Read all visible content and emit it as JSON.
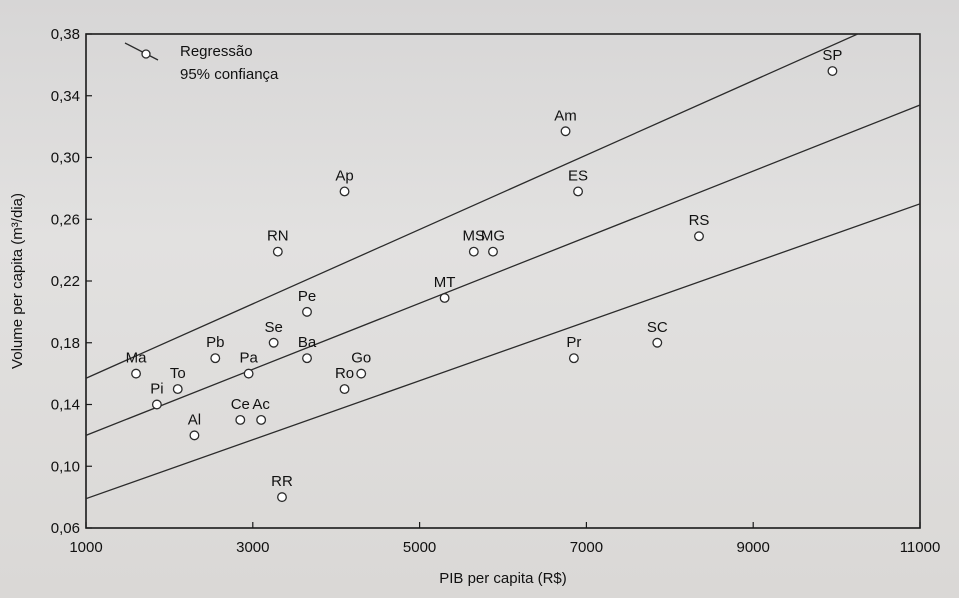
{
  "chart_data": {
    "type": "scatter",
    "xlabel": "PIB per capita (R$)",
    "ylabel": "Volume per capita (m³/dia)",
    "xlim": [
      1000,
      11000
    ],
    "ylim": [
      0.06,
      0.38
    ],
    "xticks": [
      1000,
      3000,
      5000,
      7000,
      9000,
      11000
    ],
    "xtick_labels": [
      "1000",
      "3000",
      "5000",
      "7000",
      "9000",
      "11000"
    ],
    "yticks": [
      0.06,
      0.1,
      0.14,
      0.18,
      0.22,
      0.26,
      0.3,
      0.34,
      0.38
    ],
    "ytick_labels": [
      "0,06",
      "0,10",
      "0,14",
      "0,18",
      "0,22",
      "0,26",
      "0,30",
      "0,34",
      "0,38"
    ],
    "grid": false,
    "legend": {
      "placement": "top-left",
      "entries": [
        "Regressão",
        "95% confiança"
      ]
    },
    "points": [
      {
        "label": "SP",
        "x": 9950,
        "y": 0.356
      },
      {
        "label": "Am",
        "x": 6750,
        "y": 0.317
      },
      {
        "label": "ES",
        "x": 6900,
        "y": 0.278
      },
      {
        "label": "Ap",
        "x": 4100,
        "y": 0.278
      },
      {
        "label": "RS",
        "x": 8350,
        "y": 0.249
      },
      {
        "label": "RN",
        "x": 3300,
        "y": 0.239
      },
      {
        "label": "MS",
        "x": 5650,
        "y": 0.239
      },
      {
        "label": "MG",
        "x": 5880,
        "y": 0.239
      },
      {
        "label": "MT",
        "x": 5300,
        "y": 0.209
      },
      {
        "label": "Pe",
        "x": 3650,
        "y": 0.2
      },
      {
        "label": "Se",
        "x": 3250,
        "y": 0.18
      },
      {
        "label": "SC",
        "x": 7850,
        "y": 0.18
      },
      {
        "label": "Ma",
        "x": 1600,
        "y": 0.16
      },
      {
        "label": "Pb",
        "x": 2550,
        "y": 0.17
      },
      {
        "label": "Pa",
        "x": 2950,
        "y": 0.16
      },
      {
        "label": "Ba",
        "x": 3650,
        "y": 0.17
      },
      {
        "label": "Go",
        "x": 4300,
        "y": 0.16
      },
      {
        "label": "Pr",
        "x": 6850,
        "y": 0.17
      },
      {
        "label": "To",
        "x": 2100,
        "y": 0.15
      },
      {
        "label": "Ro",
        "x": 4100,
        "y": 0.15
      },
      {
        "label": "Pi",
        "x": 1850,
        "y": 0.14
      },
      {
        "label": "Ce",
        "x": 2850,
        "y": 0.13
      },
      {
        "label": "Ac",
        "x": 3100,
        "y": 0.13
      },
      {
        "label": "Al",
        "x": 2300,
        "y": 0.12
      },
      {
        "label": "RR",
        "x": 3350,
        "y": 0.08
      }
    ],
    "series": [
      {
        "name": "Regressão",
        "kind": "line",
        "x": [
          1000,
          11000
        ],
        "y": [
          0.12,
          0.334
        ]
      },
      {
        "name": "95% confiança",
        "kind": "band-upper",
        "x": [
          1000,
          11000
        ],
        "y": [
          0.157,
          0.398
        ]
      },
      {
        "name": "95% confiança",
        "kind": "band-lower",
        "x": [
          1000,
          11000
        ],
        "y": [
          0.079,
          0.27
        ]
      }
    ],
    "colors": {
      "ink": "#2b2b2b",
      "marker_fill": "#ffffff"
    }
  }
}
